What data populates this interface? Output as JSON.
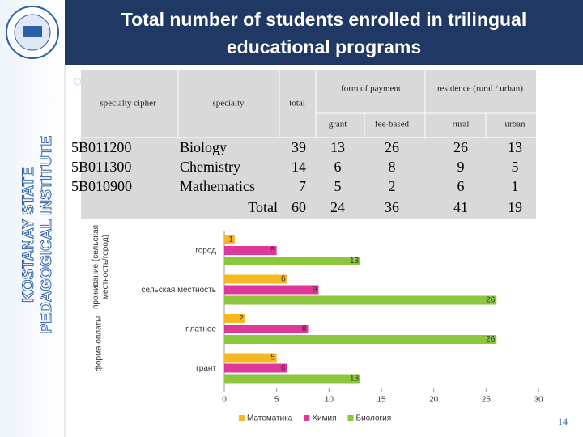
{
  "header": {
    "title_lines": [
      "Total number of students enrolled in trilingual",
      "educational programs"
    ]
  },
  "sidebar": {
    "lines": [
      "KOSTANAY STATE",
      "PEDAGOGICAL INSTITUTE"
    ]
  },
  "table": {
    "headers": {
      "cipher": "specialty cipher",
      "specialty": "specialty",
      "total": "total",
      "payment": "form of payment",
      "residence": "residence (rural / urban)",
      "grant": "grant",
      "fee": "fee-based",
      "rural": "rural",
      "urban": "urban"
    },
    "rows": [
      [
        "5B011200",
        "Biology",
        39,
        13,
        26,
        26,
        13
      ],
      [
        "5B011300",
        "Chemistry",
        14,
        6,
        8,
        9,
        5
      ],
      [
        "5B010900",
        "Mathematics",
        7,
        5,
        2,
        6,
        1
      ]
    ],
    "total_row": [
      "Total",
      60,
      24,
      36,
      41,
      19
    ]
  },
  "chart_data": {
    "type": "barh",
    "categories": [
      "город",
      "сельская местность",
      "платное",
      "грант"
    ],
    "ylabel_groups": [
      "проживание (сельская местность/город)",
      "форма оплаты"
    ],
    "series": [
      {
        "name": "Математика",
        "color": "#f5b820",
        "values": [
          1,
          6,
          2,
          5
        ]
      },
      {
        "name": "Химия",
        "color": "#e0379a",
        "values": [
          5,
          9,
          8,
          6
        ]
      },
      {
        "name": "Биология",
        "color": "#8cc63f",
        "values": [
          13,
          26,
          26,
          13
        ]
      }
    ],
    "xlim": [
      0,
      30
    ],
    "xticks": [
      0,
      5,
      10,
      15,
      20,
      25,
      30
    ],
    "legend": "bottom"
  },
  "page_number": "14"
}
